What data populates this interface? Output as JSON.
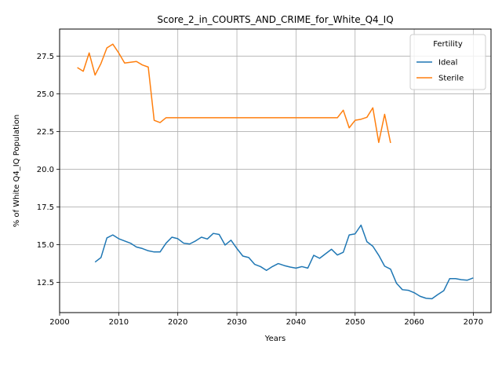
{
  "chart_data": {
    "type": "line",
    "title": "Score_2_in_COURTS_AND_CRIME_for_White_Q4_IQ",
    "xlabel": "Years",
    "ylabel": "% of White Q4_IQ Population",
    "xlim": [
      2000,
      2073
    ],
    "ylim": [
      10.5,
      29.3
    ],
    "xticks": [
      2000,
      2010,
      2020,
      2030,
      2040,
      2050,
      2060,
      2070
    ],
    "yticks": [
      12.5,
      15.0,
      17.5,
      20.0,
      22.5,
      25.0,
      27.5
    ],
    "ytick_labels": [
      "12.5",
      "15.0",
      "17.5",
      "20.0",
      "22.5",
      "25.0",
      "27.5"
    ],
    "grid": true,
    "legend": {
      "title": "Fertility",
      "placement": "top-right"
    },
    "series": [
      {
        "name": "Ideal",
        "color": "#1f77b4",
        "x": [
          2006,
          2007,
          2008,
          2009,
          2010,
          2011,
          2012,
          2013,
          2014,
          2015,
          2016,
          2017,
          2018,
          2019,
          2020,
          2021,
          2022,
          2023,
          2024,
          2025,
          2026,
          2027,
          2028,
          2029,
          2030,
          2031,
          2032,
          2033,
          2034,
          2035,
          2036,
          2037,
          2038,
          2039,
          2040,
          2041,
          2042,
          2043,
          2044,
          2045,
          2046,
          2047,
          2048,
          2049,
          2050,
          2051,
          2052,
          2053,
          2054,
          2055,
          2056,
          2057,
          2058,
          2059,
          2060,
          2061,
          2062,
          2063,
          2064,
          2065,
          2066,
          2067,
          2068,
          2069,
          2070
        ],
        "values": [
          13.85,
          14.15,
          15.45,
          15.65,
          15.4,
          15.25,
          15.1,
          14.85,
          14.75,
          14.6,
          14.52,
          14.52,
          15.1,
          15.5,
          15.4,
          15.1,
          15.05,
          15.25,
          15.5,
          15.38,
          15.75,
          15.68,
          14.98,
          15.3,
          14.75,
          14.25,
          14.15,
          13.7,
          13.55,
          13.3,
          13.55,
          13.75,
          13.62,
          13.52,
          13.45,
          13.55,
          13.45,
          14.3,
          14.1,
          14.4,
          14.7,
          14.32,
          14.5,
          15.65,
          15.72,
          16.3,
          15.2,
          14.9,
          14.3,
          13.58,
          13.38,
          12.45,
          12.02,
          11.98,
          11.82,
          11.58,
          11.45,
          11.42,
          11.7,
          11.95,
          12.75,
          12.75,
          12.68,
          12.65,
          12.8
        ]
      },
      {
        "name": "Sterile",
        "color": "#ff7f0e",
        "x": [
          2003,
          2004,
          2005,
          2006,
          2007,
          2008,
          2009,
          2010,
          2011,
          2012,
          2013,
          2014,
          2015,
          2016,
          2017,
          2018,
          2019,
          2020,
          2021,
          2022,
          2023,
          2024,
          2025,
          2026,
          2027,
          2028,
          2029,
          2030,
          2031,
          2032,
          2033,
          2034,
          2035,
          2036,
          2037,
          2038,
          2039,
          2040,
          2041,
          2042,
          2043,
          2044,
          2045,
          2046,
          2047,
          2048,
          2049,
          2050,
          2051,
          2052,
          2053,
          2054,
          2055,
          2056
        ],
        "values": [
          26.75,
          26.5,
          27.72,
          26.25,
          27.02,
          28.05,
          28.3,
          27.72,
          27.05,
          27.1,
          27.15,
          26.92,
          26.78,
          23.25,
          23.1,
          23.42,
          23.42,
          23.42,
          23.42,
          23.42,
          23.42,
          23.42,
          23.42,
          23.42,
          23.42,
          23.42,
          23.42,
          23.42,
          23.42,
          23.42,
          23.42,
          23.42,
          23.42,
          23.42,
          23.42,
          23.42,
          23.42,
          23.42,
          23.42,
          23.42,
          23.42,
          23.42,
          23.42,
          23.42,
          23.42,
          23.92,
          22.75,
          23.25,
          23.32,
          23.45,
          24.08,
          21.78,
          23.65,
          21.75
        ]
      }
    ]
  }
}
